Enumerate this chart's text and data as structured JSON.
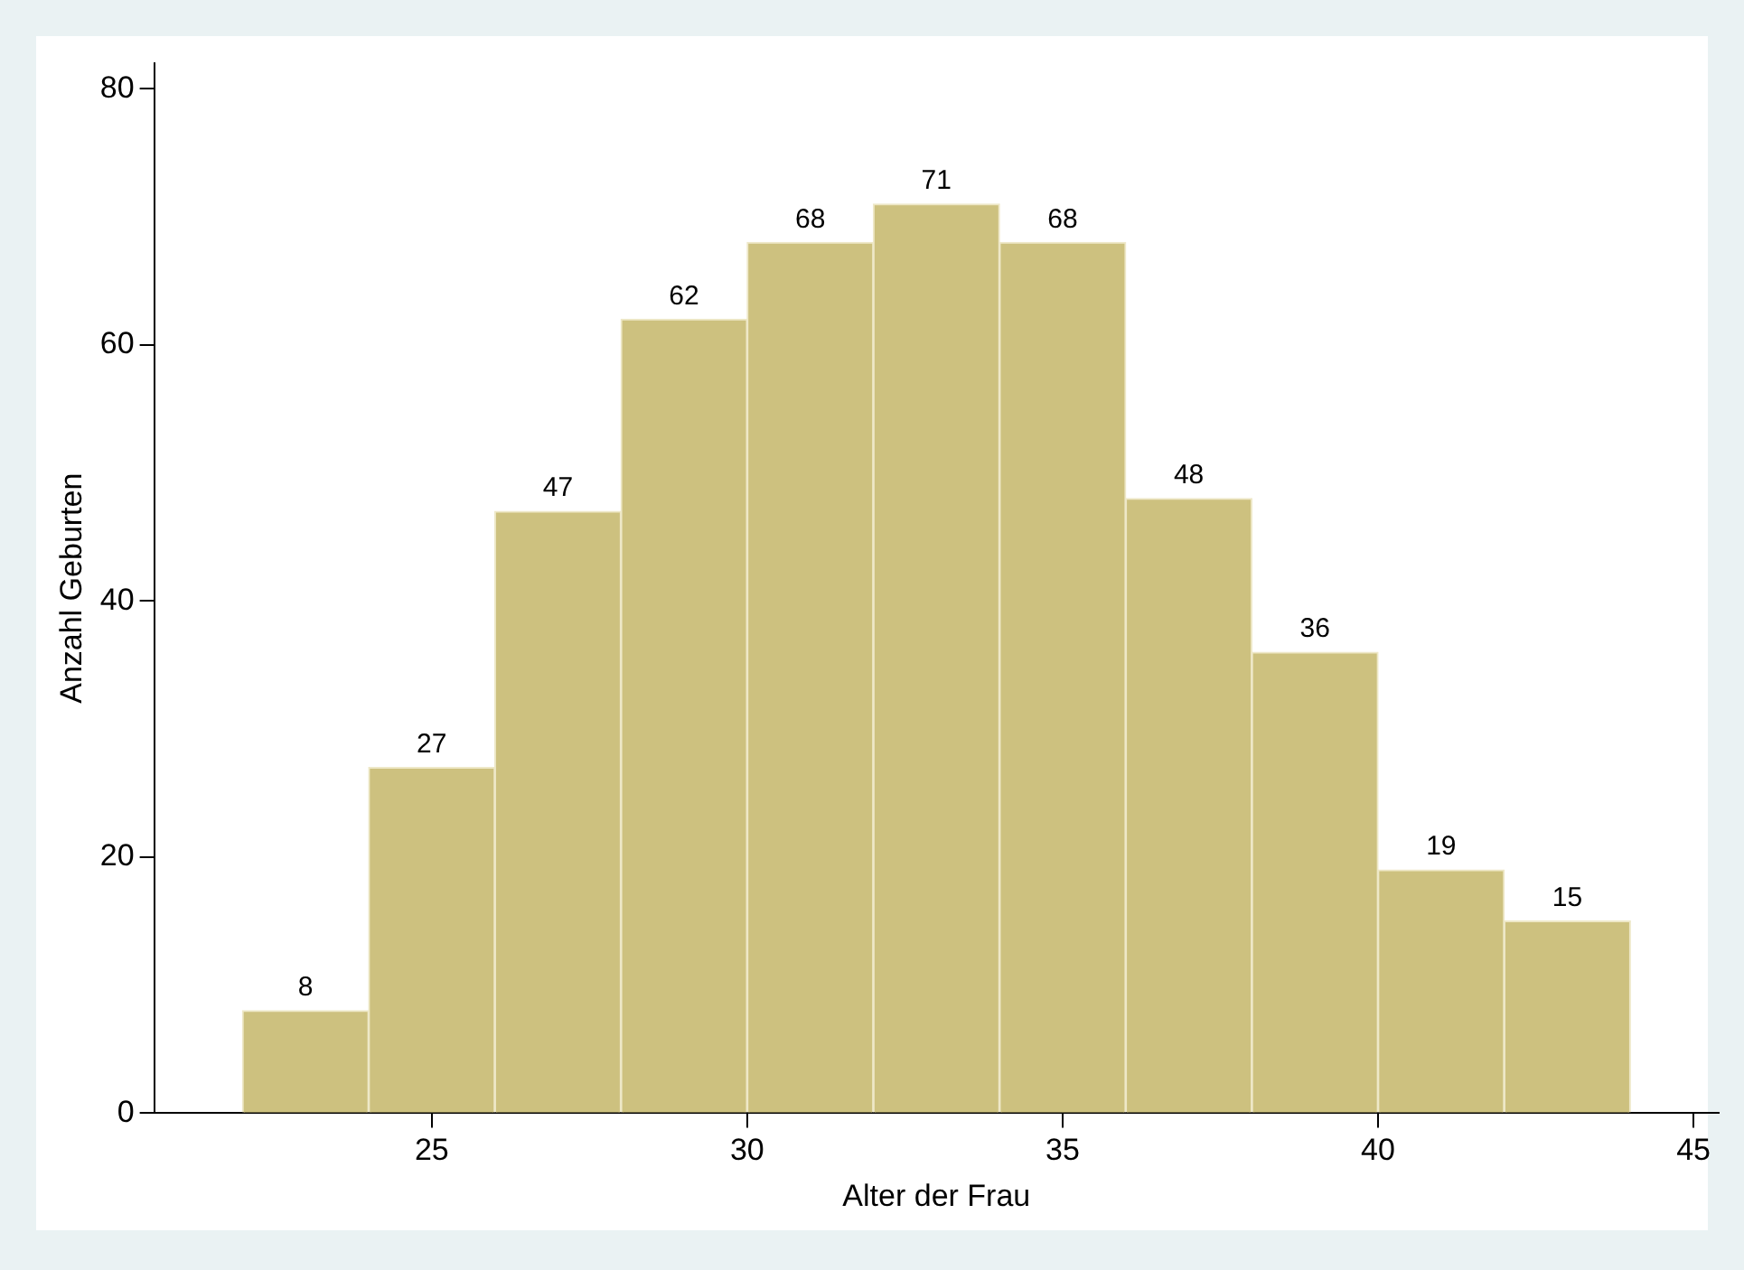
{
  "chart_data": {
    "type": "histogram",
    "xlabel": "Alter der Frau",
    "ylabel": "Anzahl Geburten",
    "bins": [
      22,
      24,
      26,
      28,
      30,
      32,
      34,
      36,
      38,
      40,
      42,
      44
    ],
    "values": [
      8,
      27,
      47,
      62,
      68,
      71,
      68,
      48,
      36,
      19,
      15
    ],
    "color": "#cdc17f",
    "data_labels": true,
    "grid": false,
    "legend": false,
    "xlim": [
      20.6,
      45.4
    ],
    "xticks": [
      25,
      30,
      35,
      40,
      45
    ],
    "ylim": [
      0,
      82
    ],
    "yticks": [
      0,
      20,
      40,
      60,
      80
    ]
  }
}
